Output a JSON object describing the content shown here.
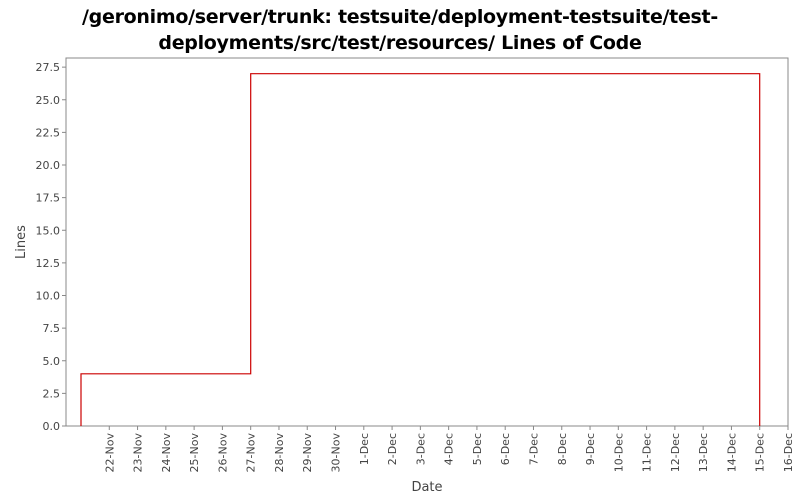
{
  "chart_data": {
    "type": "line",
    "title_line1": "/geronimo/server/trunk: testsuite/deployment-testsuite/test-",
    "title_line2": "deployments/src/test/resources/ Lines of Code",
    "xlabel": "Date",
    "ylabel": "Lines",
    "x_ticks": [
      "22-Nov",
      "23-Nov",
      "24-Nov",
      "25-Nov",
      "26-Nov",
      "27-Nov",
      "28-Nov",
      "29-Nov",
      "30-Nov",
      "1-Dec",
      "2-Dec",
      "3-Dec",
      "4-Dec",
      "5-Dec",
      "6-Dec",
      "7-Dec",
      "8-Dec",
      "9-Dec",
      "10-Dec",
      "11-Dec",
      "12-Dec",
      "13-Dec",
      "14-Dec",
      "15-Dec",
      "16-Dec"
    ],
    "y_ticks": [
      "0.0",
      "2.5",
      "5.0",
      "7.5",
      "10.0",
      "12.5",
      "15.0",
      "17.5",
      "20.0",
      "22.5",
      "25.0",
      "27.5"
    ],
    "ylim": [
      0,
      28.2
    ],
    "xlim": [
      "21-Nov",
      "16-Dec"
    ],
    "step": "post",
    "grid": false,
    "line_color": "#cc0000",
    "series": [
      {
        "name": "",
        "points": [
          {
            "x": "21-Nov",
            "y": 0
          },
          {
            "x": "21-Nov",
            "y": 4
          },
          {
            "x": "27-Nov",
            "y": 4
          },
          {
            "x": "27-Nov",
            "y": 27
          },
          {
            "x": "15-Dec",
            "y": 27
          },
          {
            "x": "15-Dec",
            "y": 0
          }
        ]
      }
    ]
  }
}
